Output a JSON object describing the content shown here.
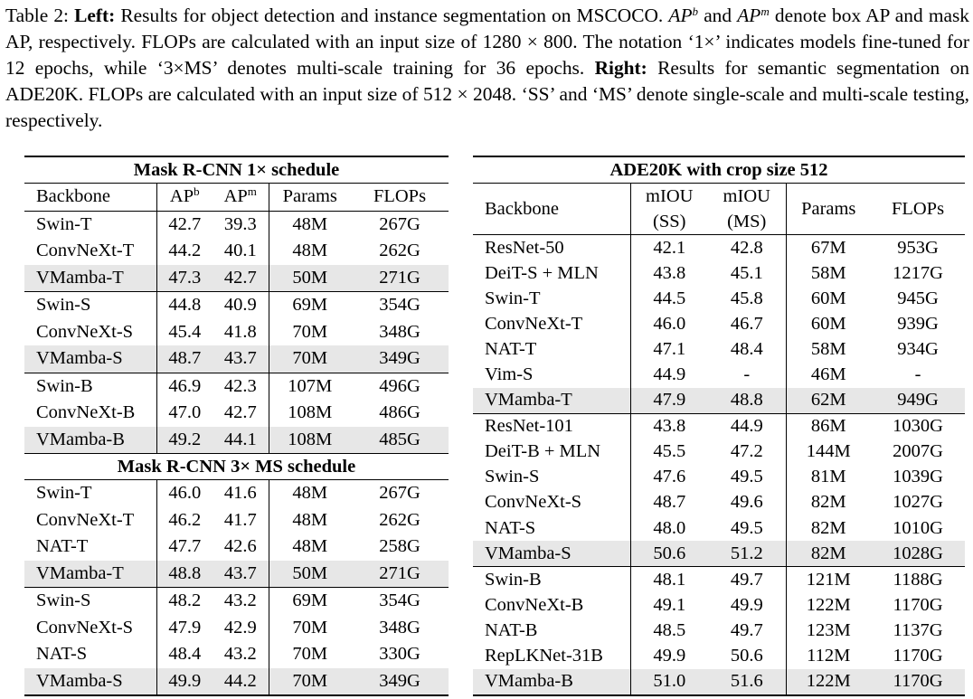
{
  "caption": {
    "prefix": "Table 2: ",
    "left_label": "Left:",
    "part1": " Results for object detection and instance segmentation on MSCOCO. ",
    "apb": "AP",
    "apb_sup": "b",
    "and": " and ",
    "apm": "AP",
    "apm_sup": "m",
    "part2": " denote box AP and mask AP, respectively. FLOPs are calculated with an input size of 1280 × 800. The notation ‘1×’ indicates models fine-tuned for 12 epochs, while ‘3×MS’ denotes multi-scale training for 36 epochs. ",
    "right_label": "Right:",
    "part3": " Results for semantic segmentation on ADE20K. FLOPs are calculated with an input size of 512 × 2048. ‘SS’ and ‘MS’ denote single-scale and multi-scale testing, respectively."
  },
  "left_table": {
    "section1_title": "Mask R-CNN 1× schedule",
    "section2_title": "Mask R-CNN 3× MS schedule",
    "columns": [
      "Backbone",
      "AP",
      "b",
      "AP",
      "m",
      "Params",
      "FLOPs"
    ],
    "section1_rows": [
      [
        "Swin-T",
        "42.7",
        "39.3",
        "48M",
        "267G"
      ],
      [
        "ConvNeXt-T",
        "44.2",
        "40.1",
        "48M",
        "262G"
      ],
      [
        "VMamba-T",
        "47.3",
        "42.7",
        "50M",
        "271G"
      ],
      [
        "Swin-S",
        "44.8",
        "40.9",
        "69M",
        "354G"
      ],
      [
        "ConvNeXt-S",
        "45.4",
        "41.8",
        "70M",
        "348G"
      ],
      [
        "VMamba-S",
        "48.7",
        "43.7",
        "70M",
        "349G"
      ],
      [
        "Swin-B",
        "46.9",
        "42.3",
        "107M",
        "496G"
      ],
      [
        "ConvNeXt-B",
        "47.0",
        "42.7",
        "108M",
        "486G"
      ],
      [
        "VMamba-B",
        "49.2",
        "44.1",
        "108M",
        "485G"
      ]
    ],
    "section2_rows": [
      [
        "Swin-T",
        "46.0",
        "41.6",
        "48M",
        "267G"
      ],
      [
        "ConvNeXt-T",
        "46.2",
        "41.7",
        "48M",
        "262G"
      ],
      [
        "NAT-T",
        "47.7",
        "42.6",
        "48M",
        "258G"
      ],
      [
        "VMamba-T",
        "48.8",
        "43.7",
        "50M",
        "271G"
      ],
      [
        "Swin-S",
        "48.2",
        "43.2",
        "69M",
        "354G"
      ],
      [
        "ConvNeXt-S",
        "47.9",
        "42.9",
        "70M",
        "348G"
      ],
      [
        "NAT-S",
        "48.4",
        "43.2",
        "70M",
        "330G"
      ],
      [
        "VMamba-S",
        "49.9",
        "44.2",
        "70M",
        "349G"
      ]
    ]
  },
  "right_table": {
    "title": "ADE20K with crop size 512",
    "columns": [
      "Backbone",
      "mIOU",
      "(SS)",
      "mIOU",
      "(MS)",
      "Params",
      "FLOPs"
    ],
    "rows": [
      [
        "ResNet-50",
        "42.1",
        "42.8",
        "67M",
        "953G"
      ],
      [
        "DeiT-S + MLN",
        "43.8",
        "45.1",
        "58M",
        "1217G"
      ],
      [
        "Swin-T",
        "44.5",
        "45.8",
        "60M",
        "945G"
      ],
      [
        "ConvNeXt-T",
        "46.0",
        "46.7",
        "60M",
        "939G"
      ],
      [
        "NAT-T",
        "47.1",
        "48.4",
        "58M",
        "934G"
      ],
      [
        "Vim-S",
        "44.9",
        "-",
        "46M",
        "-"
      ],
      [
        "VMamba-T",
        "47.9",
        "48.8",
        "62M",
        "949G"
      ],
      [
        "ResNet-101",
        "43.8",
        "44.9",
        "86M",
        "1030G"
      ],
      [
        "DeiT-B + MLN",
        "45.5",
        "47.2",
        "144M",
        "2007G"
      ],
      [
        "Swin-S",
        "47.6",
        "49.5",
        "81M",
        "1039G"
      ],
      [
        "ConvNeXt-S",
        "48.7",
        "49.6",
        "82M",
        "1027G"
      ],
      [
        "NAT-S",
        "48.0",
        "49.5",
        "82M",
        "1010G"
      ],
      [
        "VMamba-S",
        "50.6",
        "51.2",
        "82M",
        "1028G"
      ],
      [
        "Swin-B",
        "48.1",
        "49.7",
        "121M",
        "1188G"
      ],
      [
        "ConvNeXt-B",
        "49.1",
        "49.9",
        "122M",
        "1170G"
      ],
      [
        "NAT-B",
        "48.5",
        "49.7",
        "123M",
        "1137G"
      ],
      [
        "RepLKNet-31B",
        "49.9",
        "50.6",
        "112M",
        "1170G"
      ],
      [
        "VMamba-B",
        "51.0",
        "51.6",
        "122M",
        "1170G"
      ]
    ]
  },
  "colors": {
    "highlight_row": "#e7e7e7",
    "text": "#000000"
  }
}
